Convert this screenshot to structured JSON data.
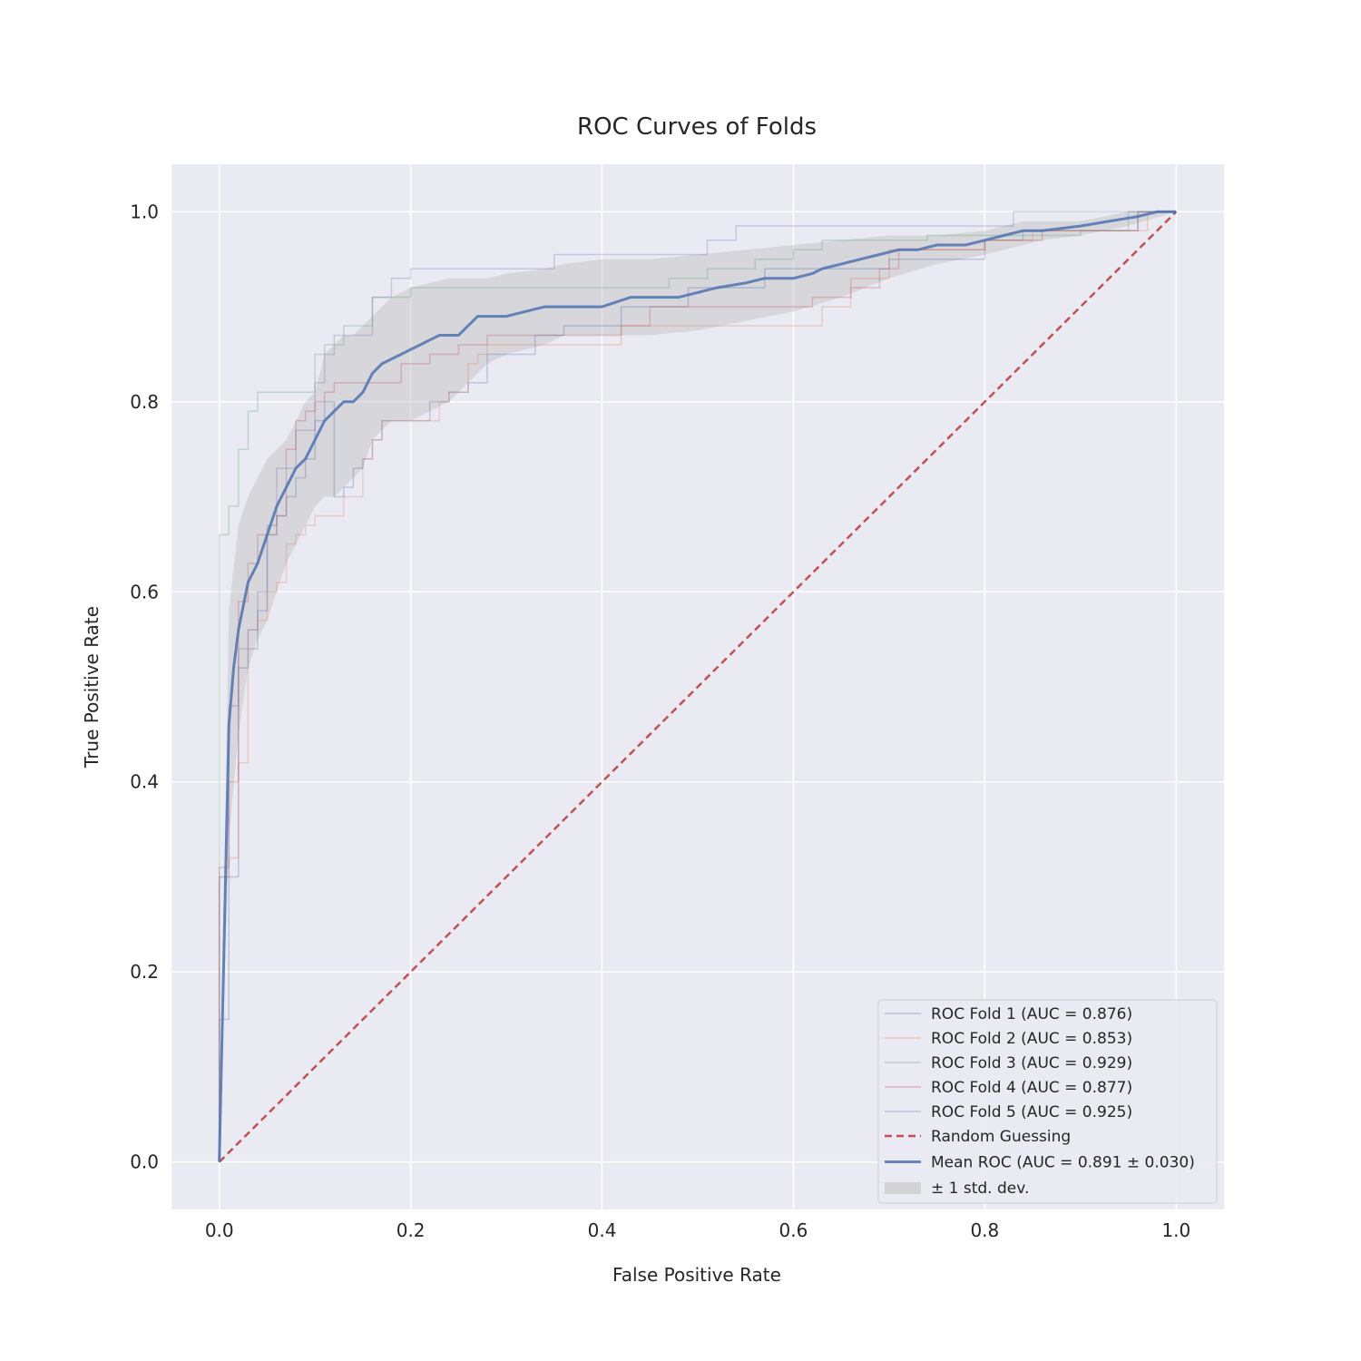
{
  "chart_data": {
    "type": "line",
    "title": "ROC Curves of Folds",
    "xlabel": "False Positive Rate",
    "ylabel": "True Positive Rate",
    "xlim": [
      -0.05,
      1.05
    ],
    "ylim": [
      -0.05,
      1.05
    ],
    "xticks": [
      "0.0",
      "0.2",
      "0.4",
      "0.6",
      "0.8",
      "1.0"
    ],
    "yticks": [
      "0.0",
      "0.2",
      "0.4",
      "0.6",
      "0.8",
      "1.0"
    ],
    "grid": true,
    "legend_position": "lower-right",
    "colors": {
      "background": "#eaeaf2",
      "grid": "#ffffff",
      "fold1": "#4c72b0",
      "fold2": "#dd8452",
      "fold3": "#55a868",
      "fold4": "#c44e52",
      "fold5": "#8172b3",
      "chance": "#c44e52",
      "mean": "#4c72b0",
      "band": "#bfbfbf"
    },
    "series": [
      {
        "name": "ROC Fold 1 (AUC = 0.876)",
        "x": [
          0,
          0,
          0.01,
          0.01,
          0.02,
          0.02,
          0.03,
          0.03,
          0.04,
          0.04,
          0.05,
          0.05,
          0.06,
          0.06,
          0.07,
          0.07,
          0.08,
          0.08,
          0.09,
          0.09,
          0.1,
          0.1,
          0.11,
          0.11,
          0.12,
          0.12,
          0.13,
          0.13,
          0.14,
          0.14,
          0.15,
          0.15,
          0.16,
          0.16,
          0.17,
          0.17,
          0.22,
          0.22,
          0.24,
          0.24,
          0.26,
          0.26,
          0.28,
          0.28,
          0.33,
          0.33,
          0.36,
          0.36,
          0.42,
          0.42,
          0.49,
          0.49,
          0.57,
          0.57,
          0.7,
          0.7,
          0.8,
          0.8,
          0.84,
          0.84,
          0.96,
          0.96,
          1.0
        ],
        "y": [
          0,
          0.15,
          0.15,
          0.3,
          0.3,
          0.52,
          0.52,
          0.54,
          0.54,
          0.58,
          0.58,
          0.67,
          0.67,
          0.68,
          0.68,
          0.7,
          0.7,
          0.72,
          0.72,
          0.74,
          0.74,
          0.78,
          0.78,
          0.8,
          0.8,
          0.7,
          0.7,
          0.71,
          0.71,
          0.73,
          0.73,
          0.74,
          0.74,
          0.76,
          0.76,
          0.78,
          0.78,
          0.8,
          0.8,
          0.81,
          0.81,
          0.82,
          0.82,
          0.85,
          0.85,
          0.87,
          0.87,
          0.88,
          0.88,
          0.9,
          0.9,
          0.92,
          0.92,
          0.94,
          0.94,
          0.95,
          0.95,
          0.97,
          0.97,
          0.98,
          0.98,
          1.0,
          1.0
        ]
      },
      {
        "name": "ROC Fold 2 (AUC = 0.853)",
        "x": [
          0,
          0,
          0.01,
          0.01,
          0.02,
          0.02,
          0.03,
          0.03,
          0.04,
          0.04,
          0.05,
          0.05,
          0.06,
          0.06,
          0.07,
          0.07,
          0.08,
          0.08,
          0.09,
          0.09,
          0.1,
          0.1,
          0.13,
          0.13,
          0.15,
          0.15,
          0.16,
          0.16,
          0.17,
          0.17,
          0.23,
          0.23,
          0.24,
          0.24,
          0.26,
          0.26,
          0.27,
          0.27,
          0.28,
          0.28,
          0.42,
          0.42,
          0.63,
          0.63,
          0.66,
          0.66,
          0.7,
          0.7,
          0.8,
          0.8,
          0.85,
          0.85,
          0.97,
          0.97,
          1.0
        ],
        "y": [
          0,
          0.3,
          0.3,
          0.32,
          0.32,
          0.42,
          0.42,
          0.56,
          0.56,
          0.57,
          0.57,
          0.6,
          0.6,
          0.61,
          0.61,
          0.65,
          0.65,
          0.66,
          0.66,
          0.67,
          0.67,
          0.68,
          0.68,
          0.7,
          0.7,
          0.74,
          0.74,
          0.76,
          0.76,
          0.78,
          0.78,
          0.8,
          0.8,
          0.81,
          0.81,
          0.84,
          0.84,
          0.85,
          0.85,
          0.86,
          0.86,
          0.88,
          0.88,
          0.9,
          0.9,
          0.93,
          0.93,
          0.96,
          0.96,
          0.97,
          0.97,
          0.98,
          0.98,
          1.0,
          1.0
        ]
      },
      {
        "name": "ROC Fold 3 (AUC = 0.929)",
        "x": [
          0,
          0,
          0.01,
          0.01,
          0.02,
          0.02,
          0.03,
          0.03,
          0.04,
          0.04,
          0.1,
          0.1,
          0.11,
          0.11,
          0.13,
          0.13,
          0.16,
          0.16,
          0.2,
          0.2,
          0.47,
          0.47,
          0.51,
          0.51,
          0.56,
          0.56,
          0.6,
          0.6,
          0.63,
          0.63,
          0.74,
          0.74,
          0.9,
          0.9,
          0.95,
          0.95,
          1.0
        ],
        "y": [
          0,
          0.66,
          0.66,
          0.69,
          0.69,
          0.75,
          0.75,
          0.79,
          0.79,
          0.81,
          0.81,
          0.85,
          0.85,
          0.86,
          0.86,
          0.88,
          0.88,
          0.91,
          0.91,
          0.92,
          0.92,
          0.93,
          0.93,
          0.94,
          0.94,
          0.95,
          0.95,
          0.96,
          0.96,
          0.97,
          0.97,
          0.975,
          0.975,
          0.98,
          0.98,
          1.0,
          1.0
        ]
      },
      {
        "name": "ROC Fold 4 (AUC = 0.877)",
        "x": [
          0,
          0,
          0.01,
          0.01,
          0.02,
          0.02,
          0.03,
          0.03,
          0.04,
          0.04,
          0.06,
          0.06,
          0.07,
          0.07,
          0.08,
          0.08,
          0.09,
          0.09,
          0.1,
          0.1,
          0.11,
          0.11,
          0.12,
          0.12,
          0.19,
          0.19,
          0.22,
          0.22,
          0.25,
          0.25,
          0.28,
          0.28,
          0.42,
          0.42,
          0.45,
          0.45,
          0.62,
          0.62,
          0.66,
          0.66,
          0.69,
          0.69,
          0.71,
          0.71,
          0.8,
          0.8,
          0.86,
          0.86,
          0.96,
          0.96,
          1.0
        ],
        "y": [
          0,
          0.31,
          0.31,
          0.4,
          0.4,
          0.59,
          0.59,
          0.63,
          0.63,
          0.66,
          0.66,
          0.68,
          0.68,
          0.75,
          0.75,
          0.78,
          0.78,
          0.79,
          0.79,
          0.8,
          0.8,
          0.81,
          0.81,
          0.82,
          0.82,
          0.84,
          0.84,
          0.85,
          0.85,
          0.86,
          0.86,
          0.87,
          0.87,
          0.88,
          0.88,
          0.9,
          0.9,
          0.91,
          0.91,
          0.92,
          0.92,
          0.94,
          0.94,
          0.96,
          0.96,
          0.97,
          0.97,
          0.98,
          0.98,
          1.0,
          1.0
        ]
      },
      {
        "name": "ROC Fold 5 (AUC = 0.925)",
        "x": [
          0,
          0,
          0.01,
          0.01,
          0.02,
          0.02,
          0.03,
          0.03,
          0.04,
          0.04,
          0.05,
          0.05,
          0.06,
          0.06,
          0.08,
          0.08,
          0.1,
          0.1,
          0.11,
          0.11,
          0.12,
          0.12,
          0.16,
          0.16,
          0.18,
          0.18,
          0.2,
          0.2,
          0.35,
          0.35,
          0.51,
          0.51,
          0.54,
          0.54,
          0.83,
          0.83,
          0.97,
          0.97,
          1.0
        ],
        "y": [
          0,
          0.3,
          0.3,
          0.48,
          0.48,
          0.54,
          0.54,
          0.56,
          0.56,
          0.6,
          0.6,
          0.66,
          0.66,
          0.73,
          0.73,
          0.77,
          0.77,
          0.82,
          0.82,
          0.85,
          0.85,
          0.87,
          0.87,
          0.91,
          0.91,
          0.93,
          0.93,
          0.94,
          0.94,
          0.955,
          0.955,
          0.97,
          0.97,
          0.985,
          0.985,
          1.0,
          1.0,
          1.0,
          1.0
        ]
      },
      {
        "name": "Random Guessing",
        "x": [
          0,
          1
        ],
        "y": [
          0,
          1
        ]
      },
      {
        "name": "Mean ROC (AUC = 0.891 ± 0.030)",
        "x": [
          0,
          0.01,
          0.015,
          0.02,
          0.03,
          0.04,
          0.05,
          0.06,
          0.07,
          0.08,
          0.09,
          0.1,
          0.11,
          0.12,
          0.13,
          0.14,
          0.15,
          0.16,
          0.17,
          0.18,
          0.19,
          0.2,
          0.21,
          0.22,
          0.23,
          0.24,
          0.25,
          0.26,
          0.27,
          0.28,
          0.29,
          0.3,
          0.32,
          0.34,
          0.36,
          0.4,
          0.43,
          0.45,
          0.48,
          0.5,
          0.52,
          0.55,
          0.57,
          0.6,
          0.62,
          0.63,
          0.65,
          0.67,
          0.69,
          0.71,
          0.73,
          0.75,
          0.78,
          0.8,
          0.82,
          0.84,
          0.86,
          0.9,
          0.93,
          0.96,
          0.98,
          1.0
        ],
        "y": [
          0,
          0.46,
          0.52,
          0.56,
          0.61,
          0.63,
          0.66,
          0.69,
          0.71,
          0.73,
          0.74,
          0.76,
          0.78,
          0.79,
          0.8,
          0.8,
          0.81,
          0.83,
          0.84,
          0.845,
          0.85,
          0.855,
          0.86,
          0.865,
          0.87,
          0.87,
          0.87,
          0.88,
          0.89,
          0.89,
          0.89,
          0.89,
          0.895,
          0.9,
          0.9,
          0.9,
          0.91,
          0.91,
          0.91,
          0.915,
          0.92,
          0.925,
          0.93,
          0.93,
          0.935,
          0.94,
          0.945,
          0.95,
          0.955,
          0.96,
          0.96,
          0.965,
          0.965,
          0.97,
          0.975,
          0.98,
          0.98,
          0.985,
          0.99,
          0.995,
          1.0,
          1.0
        ]
      }
    ],
    "std_band": {
      "name": "± 1 std. dev.",
      "x": [
        0,
        0.01,
        0.02,
        0.03,
        0.04,
        0.05,
        0.06,
        0.07,
        0.08,
        0.09,
        0.1,
        0.11,
        0.12,
        0.13,
        0.14,
        0.15,
        0.16,
        0.18,
        0.2,
        0.22,
        0.24,
        0.26,
        0.28,
        0.3,
        0.34,
        0.36,
        0.4,
        0.45,
        0.5,
        0.55,
        0.6,
        0.65,
        0.7,
        0.75,
        0.8,
        0.84,
        0.86,
        0.9,
        0.95,
        1.0
      ],
      "upper": [
        0,
        0.58,
        0.67,
        0.7,
        0.72,
        0.74,
        0.75,
        0.76,
        0.78,
        0.8,
        0.81,
        0.85,
        0.86,
        0.87,
        0.87,
        0.88,
        0.89,
        0.91,
        0.92,
        0.925,
        0.93,
        0.93,
        0.93,
        0.935,
        0.94,
        0.945,
        0.95,
        0.95,
        0.955,
        0.96,
        0.965,
        0.97,
        0.975,
        0.975,
        0.98,
        0.99,
        0.99,
        0.99,
        1.0,
        1.0
      ],
      "lower": [
        0,
        0.34,
        0.45,
        0.52,
        0.55,
        0.57,
        0.6,
        0.63,
        0.65,
        0.67,
        0.69,
        0.7,
        0.7,
        0.71,
        0.72,
        0.73,
        0.76,
        0.78,
        0.78,
        0.79,
        0.8,
        0.82,
        0.84,
        0.85,
        0.86,
        0.87,
        0.87,
        0.87,
        0.875,
        0.885,
        0.895,
        0.91,
        0.93,
        0.945,
        0.955,
        0.965,
        0.97,
        0.975,
        0.985,
        1.0
      ]
    }
  }
}
